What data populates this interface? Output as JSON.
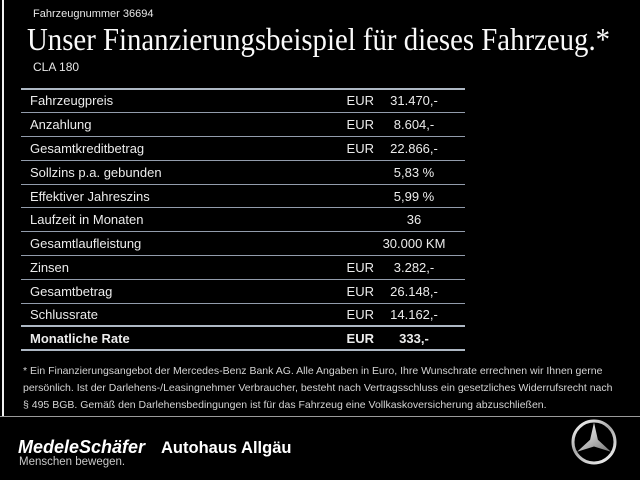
{
  "header": {
    "vehicle_number": "Fahrzeugnummer 36694",
    "title": "Unser Finanzierungsbeispiel für dieses Fahrzeug.*",
    "model": "CLA 180"
  },
  "table": {
    "rows": [
      {
        "label": "Fahrzeugpreis",
        "currency": "EUR",
        "value": "31.470,-"
      },
      {
        "label": "Anzahlung",
        "currency": "EUR",
        "value": "8.604,-"
      },
      {
        "label": "Gesamtkreditbetrag",
        "currency": "EUR",
        "value": "22.866,-"
      },
      {
        "label": "Sollzins p.a. gebunden",
        "currency": "",
        "value": "5,83 %"
      },
      {
        "label": "Effektiver Jahreszins",
        "currency": "",
        "value": "5,99 %"
      },
      {
        "label": "Laufzeit in Monaten",
        "currency": "",
        "value": "36"
      },
      {
        "label": "Gesamtlaufleistung",
        "currency": "",
        "value": "30.000 KM"
      },
      {
        "label": "Zinsen",
        "currency": "EUR",
        "value": "3.282,-"
      },
      {
        "label": "Gesamtbetrag",
        "currency": "EUR",
        "value": "26.148,-"
      },
      {
        "label": "Schlussrate",
        "currency": "EUR",
        "value": "14.162,-"
      },
      {
        "label": "Monatliche Rate",
        "currency": "EUR",
        "value": "333,-",
        "bold": true
      }
    ]
  },
  "disclaimer": {
    "lines": [
      "* Ein Finanzierungsangebot der Mercedes-Benz Bank AG. Alle Angaben in Euro, Ihre Wunschrate errechnen wir Ihnen gerne",
      "persönlich. Ist der Darlehens-/Leasingnehmer Verbraucher, besteht nach Vertragsschluss ein gesetzliches Widerrufsrecht nach",
      "§ 495 BGB. Gemäß den Darlehensbedingungen ist für das Fahrzeug eine Vollkaskoversicherung abzuschließen."
    ]
  },
  "footer": {
    "dealer_logo": "MedeleSchäfer",
    "dealer_name": "Autohaus Allgäu",
    "slogan": "Menschen bewegen.",
    "brand_icon": "mercedes-star-icon"
  },
  "colors": {
    "background": "#000000",
    "text": "#ececec",
    "table_line": "#929cab",
    "footer_divider": "#9a9a9a"
  }
}
